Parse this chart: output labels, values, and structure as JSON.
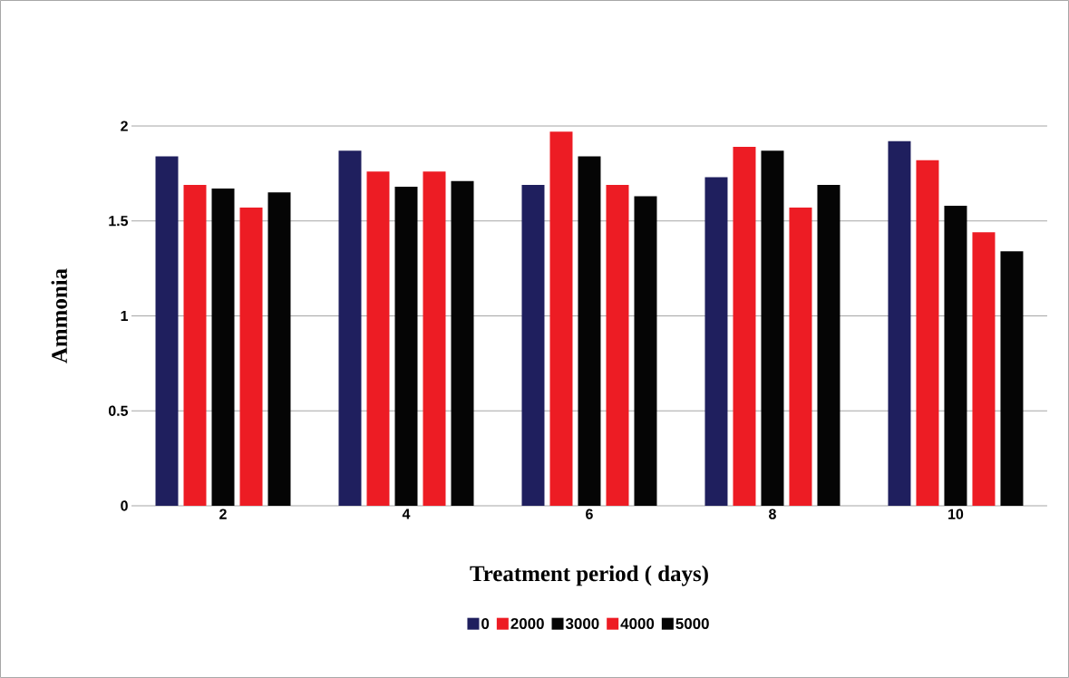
{
  "chart_data": {
    "type": "bar",
    "xlabel": "Treatment period ( days)",
    "ylabel": "Ammonia",
    "categories": [
      "2",
      "4",
      "6",
      "8",
      "10"
    ],
    "series": [
      {
        "name": "0",
        "color": "#1f1f5e",
        "values": [
          1.84,
          1.87,
          1.69,
          1.73,
          1.92
        ]
      },
      {
        "name": "2000",
        "color": "#ed1c24",
        "values": [
          1.69,
          1.76,
          1.97,
          1.89,
          1.82
        ]
      },
      {
        "name": "3000",
        "color": "#050505",
        "values": [
          1.67,
          1.68,
          1.84,
          1.87,
          1.58
        ]
      },
      {
        "name": "4000",
        "color": "#ed1c24",
        "values": [
          1.57,
          1.76,
          1.69,
          1.57,
          1.44
        ]
      },
      {
        "name": "5000",
        "color": "#050505",
        "values": [
          1.65,
          1.71,
          1.63,
          1.69,
          1.34
        ]
      }
    ],
    "ylim": [
      0,
      2
    ],
    "yticks": [
      0,
      0.5,
      1,
      1.5,
      2
    ],
    "grid": "y",
    "legend": "bottom"
  }
}
